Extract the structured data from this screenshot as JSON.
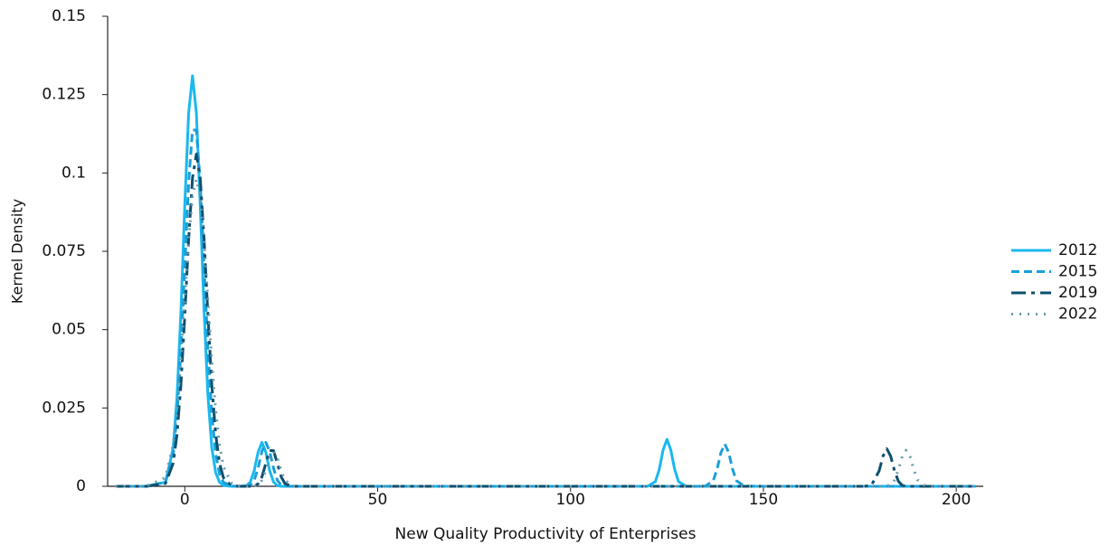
{
  "chart_data": {
    "type": "line",
    "x_label": "New Quality Productivity of Enterprises",
    "y_label": "Kernel Density",
    "x": [
      -18,
      -10,
      -5,
      -3,
      -2,
      -1,
      0,
      1,
      2,
      3,
      4,
      5,
      6,
      7,
      8,
      9,
      10,
      12,
      14,
      16,
      17,
      18,
      19,
      20,
      21,
      22,
      23,
      24,
      25,
      26,
      28,
      30,
      40,
      60,
      100,
      118,
      120,
      122,
      123,
      124,
      125,
      126,
      127,
      128,
      130,
      133,
      135,
      137,
      138,
      139,
      140,
      141,
      142,
      143,
      145,
      150,
      170,
      176,
      178,
      180,
      181,
      182,
      183,
      184,
      185,
      186,
      187,
      188,
      189,
      190,
      192,
      195,
      205
    ],
    "series": [
      {
        "name": "2012",
        "color": "#1ab8ef",
        "dash": "solid",
        "values": [
          0,
          0,
          0.0013,
          0.0123,
          0.0289,
          0.0559,
          0.0898,
          0.1192,
          0.131,
          0.1192,
          0.0898,
          0.0559,
          0.0289,
          0.0123,
          0.0044,
          0.0013,
          0.0003,
          0,
          0,
          0.0002,
          0.0014,
          0.005,
          0.0109,
          0.014,
          0.0109,
          0.005,
          0.0014,
          0.0002,
          0,
          0,
          0,
          0,
          0,
          0,
          0,
          0,
          0,
          0.0015,
          0.0054,
          0.0116,
          0.015,
          0.0116,
          0.0054,
          0.0015,
          0,
          0,
          0,
          0,
          0,
          0,
          0,
          0,
          0,
          0,
          0,
          0,
          0,
          0,
          0,
          0,
          0,
          0,
          0,
          0,
          0,
          0,
          0,
          0,
          0,
          0,
          0,
          0,
          0
        ]
      },
      {
        "name": "2015",
        "color": "#1a9fd9",
        "dash": "dashed",
        "values": [
          0,
          0,
          0.0013,
          0.0103,
          0.023,
          0.0435,
          0.0704,
          0.0969,
          0.1137,
          0.1137,
          0.0969,
          0.0704,
          0.0435,
          0.023,
          0.0103,
          0.0039,
          0.0013,
          0.0001,
          0,
          0.0001,
          0.0004,
          0.0019,
          0.0058,
          0.0112,
          0.014,
          0.0112,
          0.0058,
          0.0019,
          0.0004,
          0.0001,
          0,
          0,
          0,
          0,
          0,
          0,
          0,
          0,
          0,
          0,
          0,
          0,
          0,
          0,
          0,
          0,
          0.0001,
          0.0018,
          0.0055,
          0.0108,
          0.0135,
          0.0108,
          0.0055,
          0.0018,
          0.0001,
          0,
          0,
          0,
          0,
          0,
          0,
          0,
          0,
          0,
          0,
          0,
          0,
          0,
          0,
          0,
          0,
          0,
          0
        ]
      },
      {
        "name": "2019",
        "color": "#0e4f6e",
        "dash": "dashdot",
        "values": [
          0,
          0,
          0.0009,
          0.0074,
          0.0167,
          0.0325,
          0.0545,
          0.0788,
          0.0984,
          0.106,
          0.0984,
          0.0788,
          0.0545,
          0.0325,
          0.0167,
          0.0074,
          0.0028,
          0.0003,
          0,
          0,
          0,
          0.0001,
          0.0008,
          0.003,
          0.0073,
          0.0114,
          0.0114,
          0.0073,
          0.003,
          0.0008,
          0,
          0,
          0,
          0,
          0,
          0,
          0,
          0,
          0,
          0,
          0,
          0,
          0,
          0,
          0,
          0,
          0,
          0,
          0,
          0,
          0,
          0,
          0,
          0,
          0,
          0,
          0,
          0,
          0.0003,
          0.0049,
          0.0096,
          0.012,
          0.0096,
          0.0049,
          0.0016,
          0.0003,
          0,
          0,
          0,
          0,
          0,
          0,
          0
        ]
      },
      {
        "name": "2022",
        "color": "#6a9bab",
        "dash": "dotted",
        "values": [
          0,
          0,
          0.0028,
          0.0133,
          0.0244,
          0.0403,
          0.0594,
          0.0785,
          0.0927,
          0.098,
          0.0927,
          0.0785,
          0.0594,
          0.0403,
          0.0244,
          0.0133,
          0.0064,
          0.0011,
          0.0001,
          0,
          0,
          0.0001,
          0.0005,
          0.0019,
          0.005,
          0.0091,
          0.011,
          0.0091,
          0.005,
          0.0019,
          0.0001,
          0,
          0,
          0,
          0,
          0,
          0,
          0,
          0,
          0,
          0,
          0,
          0,
          0,
          0,
          0,
          0,
          0,
          0,
          0,
          0,
          0,
          0,
          0,
          0,
          0,
          0,
          0,
          0,
          0,
          0,
          0.0001,
          0.0005,
          0.002,
          0.0053,
          0.0095,
          0.0115,
          0.0095,
          0.0053,
          0.002,
          0.0001,
          0,
          0
        ]
      }
    ],
    "xlim": [
      -20,
      207
    ],
    "xticks": [
      0,
      50,
      100,
      150,
      200
    ],
    "ylim": [
      0,
      0.15
    ],
    "yticks": [
      0,
      0.025,
      0.05,
      0.075,
      0.1,
      0.125,
      0.15
    ],
    "legend": "right"
  }
}
